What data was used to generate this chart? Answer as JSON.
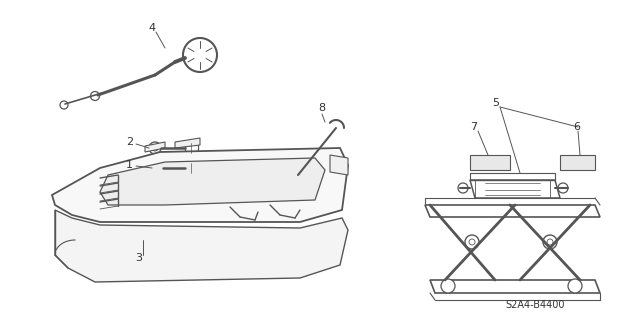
{
  "background_color": "#ffffff",
  "line_color": "#555555",
  "label_color": "#333333",
  "figsize": [
    6.4,
    3.2
  ],
  "dpi": 100,
  "part_number": "S2A4-B4400",
  "font_size": 8
}
